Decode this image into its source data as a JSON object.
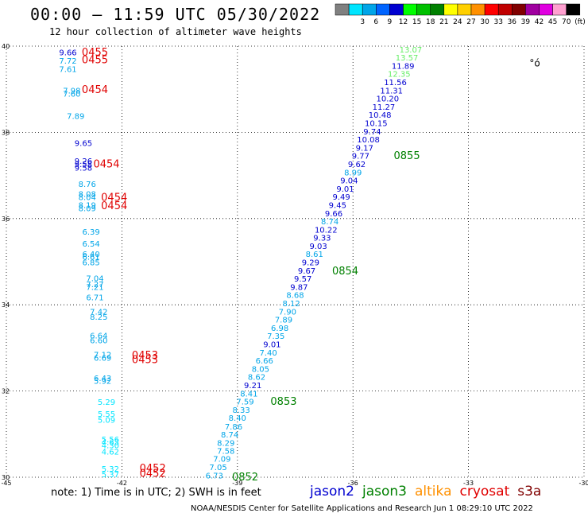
{
  "header": {
    "title": "00:00 – 11:59 UTC 05/30/2022",
    "subtitle": "12 hour collection of altimeter wave heights"
  },
  "colorbar": {
    "unit_label": "(ft)",
    "swatches": [
      {
        "color": "#808080",
        "label": ""
      },
      {
        "color": "#00e5ff",
        "label": "3"
      },
      {
        "color": "#00a5e8",
        "label": "6"
      },
      {
        "color": "#0064ff",
        "label": "9"
      },
      {
        "color": "#0000d0",
        "label": "12"
      },
      {
        "color": "#00ff00",
        "label": "15"
      },
      {
        "color": "#00c000",
        "label": "18"
      },
      {
        "color": "#008000",
        "label": "21"
      },
      {
        "color": "#ffff00",
        "label": "24"
      },
      {
        "color": "#ffd000",
        "label": "27"
      },
      {
        "color": "#ff9000",
        "label": "30"
      },
      {
        "color": "#ff0000",
        "label": "33"
      },
      {
        "color": "#c00000",
        "label": "36"
      },
      {
        "color": "#800000",
        "label": "39"
      },
      {
        "color": "#a000a0",
        "label": "42"
      },
      {
        "color": "#e000e0",
        "label": "45"
      },
      {
        "color": "#ffa0d0",
        "label": "70"
      },
      {
        "color": "#000000",
        "label": ""
      }
    ]
  },
  "chart_data": {
    "type": "scatter",
    "xlim": [
      -45,
      -30
    ],
    "ylim": [
      30,
      40
    ],
    "x_ticks": [
      "-45",
      "-42",
      "-39",
      "-36",
      "-33",
      "-30"
    ],
    "x_tick_values": [
      -45,
      -42,
      -39,
      -36,
      -33,
      -30
    ],
    "y_ticks": [
      "30",
      "32",
      "34",
      "36",
      "38",
      "40"
    ],
    "y_tick_values": [
      30,
      32,
      34,
      36,
      38,
      40
    ],
    "grid": true,
    "points": [
      {
        "x": -43.4,
        "lat": 39.86,
        "v": "9.66",
        "c": "#0000d0"
      },
      {
        "x": -43.4,
        "lat": 39.67,
        "v": "7.72",
        "c": "#00a5e8"
      },
      {
        "x": -43.4,
        "lat": 39.47,
        "v": "7.61",
        "c": "#00a5e8"
      },
      {
        "x": -43.3,
        "lat": 38.98,
        "v": "7.98",
        "c": "#00a5e8"
      },
      {
        "x": -43.3,
        "lat": 38.9,
        "v": "7.60",
        "c": "#00a5e8"
      },
      {
        "x": -43.2,
        "lat": 38.39,
        "v": "7.89",
        "c": "#00a5e8"
      },
      {
        "x": -43.0,
        "lat": 37.76,
        "v": "9.65",
        "c": "#0000d0"
      },
      {
        "x": -43.0,
        "lat": 37.34,
        "v": "9.26",
        "c": "#0000d0"
      },
      {
        "x": -43.0,
        "lat": 37.27,
        "v": "9.58",
        "c": "#0000d0"
      },
      {
        "x": -43.0,
        "lat": 37.19,
        "v": "9.58",
        "c": "#0000d0"
      },
      {
        "x": -42.9,
        "lat": 36.81,
        "v": "8.76",
        "c": "#00a5e8"
      },
      {
        "x": -42.9,
        "lat": 36.58,
        "v": "8.08",
        "c": "#00a5e8"
      },
      {
        "x": -42.9,
        "lat": 36.5,
        "v": "8.04",
        "c": "#00a5e8"
      },
      {
        "x": -42.9,
        "lat": 36.32,
        "v": "8.19",
        "c": "#00a5e8"
      },
      {
        "x": -42.9,
        "lat": 36.25,
        "v": "8.09",
        "c": "#00a5e8"
      },
      {
        "x": -42.8,
        "lat": 35.7,
        "v": "6.39",
        "c": "#00a5e8"
      },
      {
        "x": -42.8,
        "lat": 35.42,
        "v": "6.54",
        "c": "#00a5e8"
      },
      {
        "x": -42.8,
        "lat": 35.18,
        "v": "6.40",
        "c": "#00a5e8"
      },
      {
        "x": -42.8,
        "lat": 35.12,
        "v": "6.61",
        "c": "#00a5e8"
      },
      {
        "x": -42.8,
        "lat": 34.99,
        "v": "6.85",
        "c": "#00a5e8"
      },
      {
        "x": -42.7,
        "lat": 34.62,
        "v": "7.04",
        "c": "#00a5e8"
      },
      {
        "x": -42.7,
        "lat": 34.48,
        "v": "7.27",
        "c": "#00a5e8"
      },
      {
        "x": -42.7,
        "lat": 34.42,
        "v": "7.21",
        "c": "#00a5e8"
      },
      {
        "x": -42.7,
        "lat": 34.18,
        "v": "6.71",
        "c": "#00a5e8"
      },
      {
        "x": -42.6,
        "lat": 33.85,
        "v": "7.42",
        "c": "#00a5e8"
      },
      {
        "x": -42.6,
        "lat": 33.73,
        "v": "8.25",
        "c": "#00a5e8"
      },
      {
        "x": -42.6,
        "lat": 33.29,
        "v": "6.64",
        "c": "#00a5e8"
      },
      {
        "x": -42.6,
        "lat": 33.18,
        "v": "6.60",
        "c": "#00a5e8"
      },
      {
        "x": -42.5,
        "lat": 32.85,
        "v": "7.12",
        "c": "#00a5e8"
      },
      {
        "x": -42.5,
        "lat": 32.78,
        "v": "6.69",
        "c": "#00a5e8"
      },
      {
        "x": -42.5,
        "lat": 32.31,
        "v": "6.43",
        "c": "#00a5e8"
      },
      {
        "x": -42.5,
        "lat": 32.24,
        "v": "5.92",
        "c": "#00a5e8"
      },
      {
        "x": -42.4,
        "lat": 31.75,
        "v": "5.29",
        "c": "#00e5ff"
      },
      {
        "x": -42.4,
        "lat": 31.48,
        "v": "5.55",
        "c": "#00e5ff"
      },
      {
        "x": -42.4,
        "lat": 31.34,
        "v": "5.09",
        "c": "#00e5ff"
      },
      {
        "x": -42.3,
        "lat": 30.89,
        "v": "5.56",
        "c": "#00e5ff"
      },
      {
        "x": -42.3,
        "lat": 30.82,
        "v": "4.63",
        "c": "#00e5ff"
      },
      {
        "x": -42.3,
        "lat": 30.75,
        "v": "4.30",
        "c": "#00e5ff"
      },
      {
        "x": -42.3,
        "lat": 30.6,
        "v": "4.62",
        "c": "#00e5ff"
      },
      {
        "x": -42.3,
        "lat": 30.2,
        "v": "5.32",
        "c": "#00e5ff"
      },
      {
        "x": -42.3,
        "lat": 30.07,
        "v": "5.37",
        "c": "#00e5ff"
      },
      {
        "x": -39.6,
        "lat": 30.05,
        "v": "6.73",
        "c": "#00a5e8"
      },
      {
        "x": -39.5,
        "lat": 30.24,
        "v": "7.05",
        "c": "#00a5e8"
      },
      {
        "x": -39.4,
        "lat": 30.43,
        "v": "7.09",
        "c": "#00a5e8"
      },
      {
        "x": -39.3,
        "lat": 30.62,
        "v": "7.58",
        "c": "#00a5e8"
      },
      {
        "x": -39.3,
        "lat": 30.8,
        "v": "8.29",
        "c": "#00a5e8"
      },
      {
        "x": -39.2,
        "lat": 31.0,
        "v": "8.74",
        "c": "#00a5e8"
      },
      {
        "x": -39.1,
        "lat": 31.18,
        "v": "7.86",
        "c": "#00a5e8"
      },
      {
        "x": -39.0,
        "lat": 31.38,
        "v": "8.40",
        "c": "#00a5e8"
      },
      {
        "x": -38.9,
        "lat": 31.57,
        "v": "8.33",
        "c": "#00a5e8"
      },
      {
        "x": -38.8,
        "lat": 31.76,
        "v": "7.59",
        "c": "#00a5e8"
      },
      {
        "x": -38.7,
        "lat": 31.95,
        "v": "8.41",
        "c": "#00a5e8"
      },
      {
        "x": -38.6,
        "lat": 32.14,
        "v": "9.21",
        "c": "#0000d0"
      },
      {
        "x": -38.5,
        "lat": 32.33,
        "v": "8.62",
        "c": "#00a5e8"
      },
      {
        "x": -38.4,
        "lat": 32.52,
        "v": "8.05",
        "c": "#00a5e8"
      },
      {
        "x": -38.3,
        "lat": 32.71,
        "v": "6.66",
        "c": "#00a5e8"
      },
      {
        "x": -38.2,
        "lat": 32.9,
        "v": "7.40",
        "c": "#00a5e8"
      },
      {
        "x": -38.1,
        "lat": 33.09,
        "v": "9.01",
        "c": "#0000d0"
      },
      {
        "x": -38.0,
        "lat": 33.28,
        "v": "7.35",
        "c": "#00a5e8"
      },
      {
        "x": -37.9,
        "lat": 33.47,
        "v": "6.98",
        "c": "#00a5e8"
      },
      {
        "x": -37.8,
        "lat": 33.66,
        "v": "7.89",
        "c": "#00a5e8"
      },
      {
        "x": -37.7,
        "lat": 33.85,
        "v": "7.90",
        "c": "#00a5e8"
      },
      {
        "x": -37.6,
        "lat": 34.04,
        "v": "8.12",
        "c": "#00a5e8"
      },
      {
        "x": -37.5,
        "lat": 34.23,
        "v": "8.68",
        "c": "#00a5e8"
      },
      {
        "x": -37.4,
        "lat": 34.42,
        "v": "9.87",
        "c": "#0000d0"
      },
      {
        "x": -37.3,
        "lat": 34.61,
        "v": "9.57",
        "c": "#0000d0"
      },
      {
        "x": -37.2,
        "lat": 34.8,
        "v": "9.67",
        "c": "#0000d0"
      },
      {
        "x": -37.1,
        "lat": 34.99,
        "v": "9.29",
        "c": "#0000d0"
      },
      {
        "x": -37.0,
        "lat": 35.18,
        "v": "8.61",
        "c": "#00a5e8"
      },
      {
        "x": -36.9,
        "lat": 35.37,
        "v": "9.03",
        "c": "#0000d0"
      },
      {
        "x": -36.8,
        "lat": 35.56,
        "v": "9.33",
        "c": "#0000d0"
      },
      {
        "x": -36.7,
        "lat": 35.75,
        "v": "10.22",
        "c": "#0000d0"
      },
      {
        "x": -36.6,
        "lat": 35.94,
        "v": "8.74",
        "c": "#00a5e8"
      },
      {
        "x": -36.5,
        "lat": 36.13,
        "v": "9.66",
        "c": "#0000d0"
      },
      {
        "x": -36.4,
        "lat": 36.32,
        "v": "9.45",
        "c": "#0000d0"
      },
      {
        "x": -36.3,
        "lat": 36.51,
        "v": "9.49",
        "c": "#0000d0"
      },
      {
        "x": -36.2,
        "lat": 36.7,
        "v": "9.01",
        "c": "#0000d0"
      },
      {
        "x": -36.1,
        "lat": 36.89,
        "v": "9.04",
        "c": "#0000d0"
      },
      {
        "x": -36.0,
        "lat": 37.08,
        "v": "8.99",
        "c": "#00a5e8"
      },
      {
        "x": -35.9,
        "lat": 37.27,
        "v": "9.62",
        "c": "#0000d0"
      },
      {
        "x": -35.8,
        "lat": 37.46,
        "v": "9.77",
        "c": "#0000d0"
      },
      {
        "x": -35.7,
        "lat": 37.65,
        "v": "9.17",
        "c": "#0000d0"
      },
      {
        "x": -35.6,
        "lat": 37.84,
        "v": "10.08",
        "c": "#0000d0"
      },
      {
        "x": -35.5,
        "lat": 38.03,
        "v": "9.74",
        "c": "#0000d0"
      },
      {
        "x": -35.4,
        "lat": 38.22,
        "v": "10.15",
        "c": "#0000d0"
      },
      {
        "x": -35.3,
        "lat": 38.41,
        "v": "10.48",
        "c": "#0000d0"
      },
      {
        "x": -35.2,
        "lat": 38.6,
        "v": "11.27",
        "c": "#0000d0"
      },
      {
        "x": -35.1,
        "lat": 38.79,
        "v": "10.20",
        "c": "#0000d0"
      },
      {
        "x": -35.0,
        "lat": 38.98,
        "v": "11.31",
        "c": "#0000d0"
      },
      {
        "x": -34.9,
        "lat": 39.17,
        "v": "11.56",
        "c": "#0000d0"
      },
      {
        "x": -34.8,
        "lat": 39.36,
        "v": "12.35",
        "c": "#66ee66"
      },
      {
        "x": -34.7,
        "lat": 39.55,
        "v": "11.89",
        "c": "#0000d0"
      },
      {
        "x": -34.6,
        "lat": 39.74,
        "v": "13.57",
        "c": "#66ee66"
      },
      {
        "x": -34.5,
        "lat": 39.93,
        "v": "13.07",
        "c": "#66ee66"
      }
    ],
    "time_labels": [
      {
        "x": -42.7,
        "lat": 39.87,
        "v": "0455",
        "c": "#e00000"
      },
      {
        "x": -42.7,
        "lat": 39.7,
        "v": "0455",
        "c": "#e00000"
      },
      {
        "x": -42.7,
        "lat": 39.0,
        "v": "0454",
        "c": "#e00000"
      },
      {
        "x": -42.4,
        "lat": 37.28,
        "v": "0454",
        "c": "#e00000"
      },
      {
        "x": -42.2,
        "lat": 36.5,
        "v": "0454",
        "c": "#e00000"
      },
      {
        "x": -42.2,
        "lat": 36.31,
        "v": "0454",
        "c": "#e00000"
      },
      {
        "x": -41.4,
        "lat": 32.84,
        "v": "0453",
        "c": "#e00000"
      },
      {
        "x": -41.4,
        "lat": 32.74,
        "v": "0453",
        "c": "#e00000"
      },
      {
        "x": -41.2,
        "lat": 30.22,
        "v": "0452",
        "c": "#e00000"
      },
      {
        "x": -41.2,
        "lat": 30.1,
        "v": "0452",
        "c": "#e00000"
      },
      {
        "x": -38.8,
        "lat": 30.02,
        "v": "0852",
        "c": "#008000"
      },
      {
        "x": -37.8,
        "lat": 31.77,
        "v": "0853",
        "c": "#008000"
      },
      {
        "x": -36.2,
        "lat": 34.8,
        "v": "0854",
        "c": "#008000"
      },
      {
        "x": -34.6,
        "lat": 37.47,
        "v": "0855",
        "c": "#008000"
      }
    ],
    "annotation": {
      "x": -30.0,
      "lat": 39.6,
      "text": "°ó"
    }
  },
  "note": "note: 1) Time is in UTC; 2) SWH is in feet",
  "legend": [
    {
      "label": "jason2",
      "color": "#0000d0"
    },
    {
      "label": "jason3",
      "color": "#008000"
    },
    {
      "label": "altika",
      "color": "#ff9000"
    },
    {
      "label": "cryosat",
      "color": "#e00000"
    },
    {
      "label": "s3a",
      "color": "#800000"
    }
  ],
  "footer": "NOAA/NESDIS Center for Satellite Applications and Research   Jun  1 08:29:10 UTC 2022"
}
